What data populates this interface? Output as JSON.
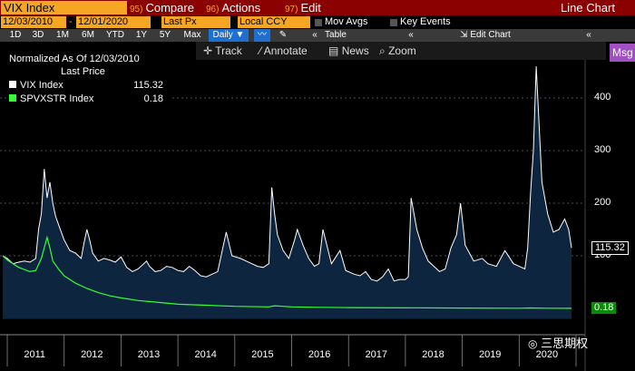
{
  "header": {
    "security_field": "VIX Index",
    "compare": {
      "num": "95)",
      "label": "Compare"
    },
    "actions": {
      "num": "96)",
      "label": "Actions"
    },
    "edit": {
      "num": "97)",
      "label": "Edit"
    },
    "chart_title": "Line Chart"
  },
  "controls": {
    "start_date": "12/03/2010",
    "date_separator": "-",
    "end_date": "12/01/2020",
    "price_field": "Last Px",
    "currency": "Local CCY",
    "mov_avgs": "Mov Avgs",
    "key_events": "Key Events"
  },
  "ranges": {
    "buttons": [
      "1D",
      "3D",
      "1M",
      "6M",
      "YTD",
      "1Y",
      "5Y",
      "Max"
    ],
    "frequency": "Daily",
    "table_label": "Table",
    "edit_chart_label": "Edit Chart"
  },
  "tools": {
    "track": "Track",
    "annotate": "Annotate",
    "news": "News",
    "zoom": "Zoom",
    "msg": "Msg"
  },
  "legend": {
    "line1": "Normalized As Of 12/03/2010",
    "line2": "Last Price",
    "items": [
      {
        "name": "VIX Index",
        "value": "115.32",
        "color": "#ffffff"
      },
      {
        "name": "SPVXSTR Index",
        "value": "0.18",
        "color": "#33ff33"
      }
    ]
  },
  "watermark": "三思期权",
  "chart_data": {
    "type": "line",
    "title": "",
    "xlabel": "",
    "ylabel": "",
    "ylim": [
      -20,
      480
    ],
    "xlim": [
      2010.92,
      2020.92
    ],
    "y_ticks": [
      100,
      200,
      300,
      400
    ],
    "x_ticks": [
      "2011",
      "2012",
      "2013",
      "2014",
      "2015",
      "2016",
      "2017",
      "2018",
      "2019",
      "2020"
    ],
    "grid": "horizontal dashed",
    "legend_placement": "top-left",
    "last_value_tags": [
      "115.32",
      "0.18"
    ],
    "series": [
      {
        "name": "VIX Index",
        "color": "#ffffff",
        "fill": "#0e2540",
        "x": [
          2010.92,
          2011.0,
          2011.1,
          2011.2,
          2011.3,
          2011.4,
          2011.5,
          2011.55,
          2011.6,
          2011.65,
          2011.7,
          2011.75,
          2011.8,
          2011.85,
          2011.9,
          2012.0,
          2012.1,
          2012.2,
          2012.3,
          2012.35,
          2012.4,
          2012.45,
          2012.5,
          2012.6,
          2012.7,
          2012.8,
          2012.9,
          2013.0,
          2013.1,
          2013.2,
          2013.3,
          2013.4,
          2013.45,
          2013.5,
          2013.6,
          2013.7,
          2013.8,
          2013.9,
          2014.0,
          2014.1,
          2014.2,
          2014.3,
          2014.4,
          2014.5,
          2014.6,
          2014.7,
          2014.78,
          2014.85,
          2014.95,
          2015.1,
          2015.2,
          2015.3,
          2015.4,
          2015.5,
          2015.6,
          2015.65,
          2015.7,
          2015.75,
          2015.85,
          2015.95,
          2016.05,
          2016.1,
          2016.2,
          2016.3,
          2016.4,
          2016.48,
          2016.55,
          2016.7,
          2016.85,
          2016.95,
          2017.1,
          2017.2,
          2017.3,
          2017.4,
          2017.5,
          2017.6,
          2017.7,
          2017.8,
          2017.9,
          2018.0,
          2018.05,
          2018.1,
          2018.2,
          2018.3,
          2018.4,
          2018.5,
          2018.6,
          2018.7,
          2018.8,
          2018.9,
          2018.97,
          2019.05,
          2019.2,
          2019.35,
          2019.45,
          2019.6,
          2019.65,
          2019.75,
          2019.9,
          2020.0,
          2020.1,
          2020.15,
          2020.2,
          2020.25,
          2020.3,
          2020.4,
          2020.5,
          2020.6,
          2020.7,
          2020.8,
          2020.87,
          2020.92
        ],
        "y": [
          100,
          95,
          85,
          88,
          90,
          88,
          95,
          150,
          180,
          265,
          210,
          240,
          200,
          175,
          160,
          130,
          110,
          105,
          95,
          125,
          150,
          130,
          105,
          90,
          95,
          92,
          88,
          98,
          78,
          70,
          75,
          85,
          90,
          80,
          70,
          72,
          80,
          78,
          72,
          70,
          80,
          72,
          62,
          60,
          65,
          70,
          110,
          145,
          100,
          95,
          90,
          85,
          80,
          78,
          85,
          230,
          180,
          140,
          110,
          95,
          130,
          150,
          120,
          95,
          80,
          85,
          150,
          85,
          110,
          72,
          65,
          62,
          70,
          55,
          52,
          60,
          75,
          52,
          55,
          55,
          60,
          210,
          150,
          115,
          90,
          80,
          70,
          75,
          115,
          140,
          200,
          120,
          90,
          95,
          85,
          80,
          90,
          110,
          85,
          80,
          75,
          115,
          220,
          300,
          460,
          240,
          180,
          145,
          150,
          170,
          150,
          115
        ],
        "last_value": 115.32
      },
      {
        "name": "SPVXSTR Index",
        "color": "#33ff33",
        "x": [
          2010.92,
          2011.0,
          2011.2,
          2011.4,
          2011.5,
          2011.6,
          2011.7,
          2011.75,
          2011.8,
          2011.9,
          2012.0,
          2012.2,
          2012.4,
          2012.6,
          2012.8,
          2013.0,
          2013.3,
          2013.6,
          2014.0,
          2014.5,
          2015.0,
          2015.6,
          2015.7,
          2016.0,
          2016.5,
          2017.0,
          2018.0,
          2018.1,
          2019.0,
          2020.0,
          2020.2,
          2020.5,
          2020.92
        ],
        "y": [
          100,
          92,
          78,
          70,
          72,
          95,
          135,
          115,
          90,
          75,
          62,
          48,
          38,
          30,
          24,
          20,
          15,
          12,
          8,
          6,
          4,
          3,
          5,
          3,
          2,
          1.5,
          1,
          1.2,
          0.7,
          0.4,
          0.8,
          0.3,
          0.18
        ],
        "last_value": 0.18
      }
    ]
  }
}
